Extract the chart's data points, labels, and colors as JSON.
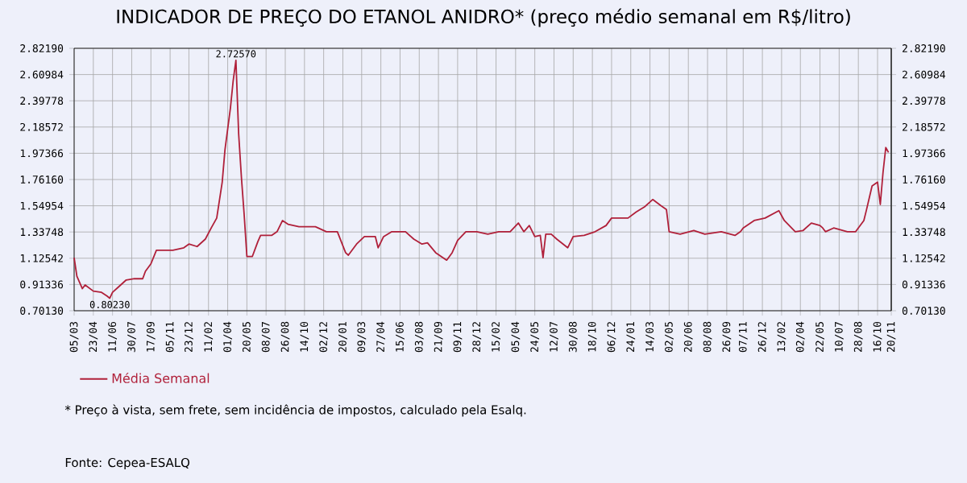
{
  "chart_data": {
    "type": "line",
    "title": "INDICADOR DE PREÇO DO ETANOL ANIDRO* (preço médio semanal em R$/litro)",
    "x": [
      "2010-03-05",
      "2010-03-12",
      "2010-03-26",
      "2010-04-02",
      "2010-04-23",
      "2010-05-14",
      "2010-05-28",
      "2010-06-04",
      "2010-06-11",
      "2010-06-25",
      "2010-07-16",
      "2010-08-06",
      "2010-08-27",
      "2010-09-03",
      "2010-09-17",
      "2010-10-01",
      "2010-11-12",
      "2010-12-10",
      "2010-12-23",
      "2011-01-13",
      "2011-02-03",
      "2011-02-18",
      "2011-03-04",
      "2011-03-18",
      "2011-03-25",
      "2011-04-08",
      "2011-04-15",
      "2011-04-22",
      "2011-04-29",
      "2011-05-06",
      "2011-05-13",
      "2011-05-20",
      "2011-06-03",
      "2011-06-17",
      "2011-06-24",
      "2011-07-22",
      "2011-08-05",
      "2011-08-19",
      "2011-09-02",
      "2011-09-30",
      "2011-11-11",
      "2011-12-09",
      "2012-01-06",
      "2012-01-27",
      "2012-02-03",
      "2012-02-24",
      "2012-03-16",
      "2012-04-13",
      "2012-04-20",
      "2012-05-04",
      "2012-05-25",
      "2012-06-29",
      "2012-07-20",
      "2012-08-10",
      "2012-08-24",
      "2012-09-14",
      "2012-10-12",
      "2012-10-26",
      "2012-11-09",
      "2012-11-30",
      "2012-12-28",
      "2013-01-25",
      "2013-02-22",
      "2013-03-22",
      "2013-04-12",
      "2013-04-26",
      "2013-05-10",
      "2013-05-24",
      "2013-06-07",
      "2013-06-14",
      "2013-06-21",
      "2013-07-05",
      "2013-07-19",
      "2013-08-16",
      "2013-08-30",
      "2013-09-27",
      "2013-10-25",
      "2013-11-22",
      "2013-12-06",
      "2014-01-17",
      "2014-02-07",
      "2014-02-28",
      "2014-03-21",
      "2014-04-11",
      "2014-04-25",
      "2014-05-02",
      "2014-05-30",
      "2014-07-04",
      "2014-08-01",
      "2014-09-12",
      "2014-10-17",
      "2014-10-31",
      "2014-11-07",
      "2014-12-05",
      "2015-01-02",
      "2015-02-06",
      "2015-02-20",
      "2015-03-20",
      "2015-04-09",
      "2015-04-30",
      "2015-05-22",
      "2015-05-29",
      "2015-06-05",
      "2015-06-26",
      "2015-07-31",
      "2015-08-21",
      "2015-09-11",
      "2015-09-18",
      "2015-10-02",
      "2015-10-16",
      "2015-10-23",
      "2015-10-30",
      "2015-11-06",
      "2015-11-13"
    ],
    "series": [
      {
        "name": "Média Semanal",
        "color": "#b0203a",
        "values": [
          1.13,
          0.98,
          0.88,
          0.91,
          0.86,
          0.85,
          0.82,
          0.8023,
          0.85,
          0.89,
          0.95,
          0.96,
          0.96,
          1.02,
          1.08,
          1.19,
          1.19,
          1.21,
          1.24,
          1.22,
          1.28,
          1.37,
          1.45,
          1.74,
          2.0,
          2.34,
          2.56,
          2.7257,
          2.13,
          1.78,
          1.48,
          1.14,
          1.14,
          1.26,
          1.31,
          1.31,
          1.34,
          1.43,
          1.4,
          1.38,
          1.38,
          1.34,
          1.34,
          1.17,
          1.15,
          1.24,
          1.3,
          1.3,
          1.21,
          1.3,
          1.34,
          1.34,
          1.28,
          1.24,
          1.25,
          1.17,
          1.11,
          1.17,
          1.27,
          1.34,
          1.34,
          1.32,
          1.34,
          1.34,
          1.41,
          1.34,
          1.39,
          1.3,
          1.31,
          1.13,
          1.32,
          1.32,
          1.28,
          1.21,
          1.3,
          1.31,
          1.34,
          1.39,
          1.45,
          1.45,
          1.5,
          1.54,
          1.6,
          1.55,
          1.52,
          1.34,
          1.32,
          1.35,
          1.32,
          1.34,
          1.31,
          1.34,
          1.37,
          1.43,
          1.45,
          1.51,
          1.43,
          1.34,
          1.35,
          1.41,
          1.39,
          1.37,
          1.34,
          1.37,
          1.34,
          1.34,
          1.43,
          1.52,
          1.71,
          1.74,
          1.56,
          1.82,
          2.02,
          1.98
        ]
      }
    ],
    "xlim": [
      "2010-03-05",
      "2015-11-20"
    ],
    "xticks": [
      {
        "value": "2010-03-05",
        "label": "05/03"
      },
      {
        "value": "2010-04-23",
        "label": "23/04"
      },
      {
        "value": "2010-06-11",
        "label": "11/06"
      },
      {
        "value": "2010-07-30",
        "label": "30/07"
      },
      {
        "value": "2010-09-17",
        "label": "17/09"
      },
      {
        "value": "2010-11-05",
        "label": "05/11"
      },
      {
        "value": "2010-12-23",
        "label": "23/12"
      },
      {
        "value": "2011-02-11",
        "label": "11/02"
      },
      {
        "value": "2011-04-01",
        "label": "01/04"
      },
      {
        "value": "2011-05-20",
        "label": "20/05"
      },
      {
        "value": "2011-07-08",
        "label": "08/07"
      },
      {
        "value": "2011-08-26",
        "label": "26/08"
      },
      {
        "value": "2011-10-14",
        "label": "14/10"
      },
      {
        "value": "2011-12-02",
        "label": "02/12"
      },
      {
        "value": "2012-01-20",
        "label": "20/01"
      },
      {
        "value": "2012-03-09",
        "label": "09/03"
      },
      {
        "value": "2012-04-27",
        "label": "27/04"
      },
      {
        "value": "2012-06-15",
        "label": "15/06"
      },
      {
        "value": "2012-08-03",
        "label": "03/08"
      },
      {
        "value": "2012-09-21",
        "label": "21/09"
      },
      {
        "value": "2012-11-09",
        "label": "09/11"
      },
      {
        "value": "2012-12-28",
        "label": "28/12"
      },
      {
        "value": "2013-02-15",
        "label": "15/02"
      },
      {
        "value": "2013-04-05",
        "label": "05/04"
      },
      {
        "value": "2013-05-24",
        "label": "24/05"
      },
      {
        "value": "2013-07-12",
        "label": "12/07"
      },
      {
        "value": "2013-08-30",
        "label": "30/08"
      },
      {
        "value": "2013-10-18",
        "label": "18/10"
      },
      {
        "value": "2013-12-06",
        "label": "06/12"
      },
      {
        "value": "2014-01-24",
        "label": "24/01"
      },
      {
        "value": "2014-03-14",
        "label": "14/03"
      },
      {
        "value": "2014-05-02",
        "label": "02/05"
      },
      {
        "value": "2014-06-20",
        "label": "20/06"
      },
      {
        "value": "2014-08-08",
        "label": "08/08"
      },
      {
        "value": "2014-09-26",
        "label": "26/09"
      },
      {
        "value": "2014-11-07",
        "label": "07/11"
      },
      {
        "value": "2014-12-26",
        "label": "26/12"
      },
      {
        "value": "2015-02-13",
        "label": "13/02"
      },
      {
        "value": "2015-04-02",
        "label": "02/04"
      },
      {
        "value": "2015-05-22",
        "label": "22/05"
      },
      {
        "value": "2015-07-10",
        "label": "10/07"
      },
      {
        "value": "2015-08-28",
        "label": "28/08"
      },
      {
        "value": "2015-10-16",
        "label": "16/10"
      },
      {
        "value": "2015-11-20",
        "label": "20/11"
      }
    ],
    "ylim": [
      0.7013,
      2.8219
    ],
    "yticks": [
      {
        "value": 0.7013,
        "label": "0.70130"
      },
      {
        "value": 0.91336,
        "label": "0.91336"
      },
      {
        "value": 1.12542,
        "label": "1.12542"
      },
      {
        "value": 1.33748,
        "label": "1.33748"
      },
      {
        "value": 1.54954,
        "label": "1.54954"
      },
      {
        "value": 1.7616,
        "label": "1.76160"
      },
      {
        "value": 1.97366,
        "label": "1.97366"
      },
      {
        "value": 2.18572,
        "label": "2.18572"
      },
      {
        "value": 2.39778,
        "label": "2.39778"
      },
      {
        "value": 2.60984,
        "label": "2.60984"
      },
      {
        "value": 2.8219,
        "label": "2.82190"
      }
    ],
    "y2lim": [
      0.7013,
      2.8219
    ],
    "y2ticks": [
      {
        "value": 0.7013,
        "label": "0.70130"
      },
      {
        "value": 0.91336,
        "label": "0.91336"
      },
      {
        "value": 1.12542,
        "label": "1.12542"
      },
      {
        "value": 1.33748,
        "label": "1.33748"
      },
      {
        "value": 1.54954,
        "label": "1.54954"
      },
      {
        "value": 1.7616,
        "label": "1.76160"
      },
      {
        "value": 1.97366,
        "label": "1.97366"
      },
      {
        "value": 2.18572,
        "label": "2.18572"
      },
      {
        "value": 2.39778,
        "label": "2.39778"
      },
      {
        "value": 2.60984,
        "label": "2.60984"
      },
      {
        "value": 2.8219,
        "label": "2.82190"
      }
    ],
    "grid": true,
    "legend": "bottom left",
    "annotations": [
      {
        "text": "2.72570",
        "x": "2011-04-22",
        "y": 2.7257
      },
      {
        "text": "0.80230",
        "x": "2010-06-04",
        "y": 0.8023
      },
      "* Preço à vista, sem frete, sem incidência de impostos, calculado pela Esalq.",
      "Fonte: Cepea-ESALQ"
    ]
  }
}
